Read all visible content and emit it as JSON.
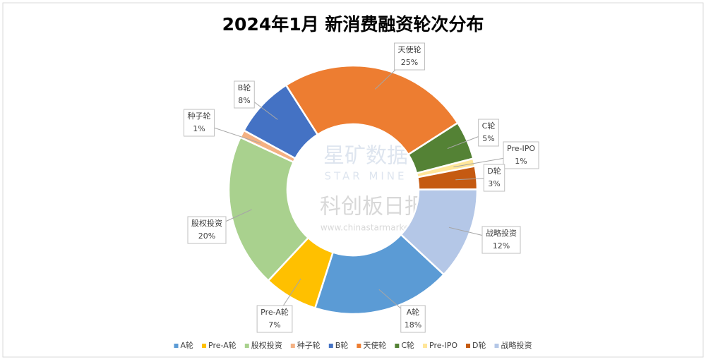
{
  "chart_data": {
    "type": "doughnut",
    "title": "2024年1月 新消费融资轮次分布",
    "categories": [
      "A轮",
      "Pre-A轮",
      "股权投资",
      "种子轮",
      "B轮",
      "天使轮",
      "C轮",
      "Pre-IPO",
      "D轮",
      "战略投资"
    ],
    "values": [
      18,
      7,
      20,
      1,
      8,
      25,
      5,
      1,
      3,
      12
    ],
    "value_labels": [
      "18%",
      "7%",
      "20%",
      "1%",
      "8%",
      "25%",
      "5%",
      "1%",
      "3%",
      "12%"
    ],
    "colors": [
      "#5b9bd5",
      "#ffc000",
      "#a9d18e",
      "#f4b183",
      "#4472c4",
      "#ed7d31",
      "#548235",
      "#ffe699",
      "#c55a11",
      "#b4c7e7"
    ],
    "legend": "bottom"
  },
  "watermark": {
    "brand_cn": "星矿数据",
    "brand_en": "STAR MINE",
    "source_cn": "科创板日报",
    "source_url": "www.chinastarmarket.cn"
  }
}
